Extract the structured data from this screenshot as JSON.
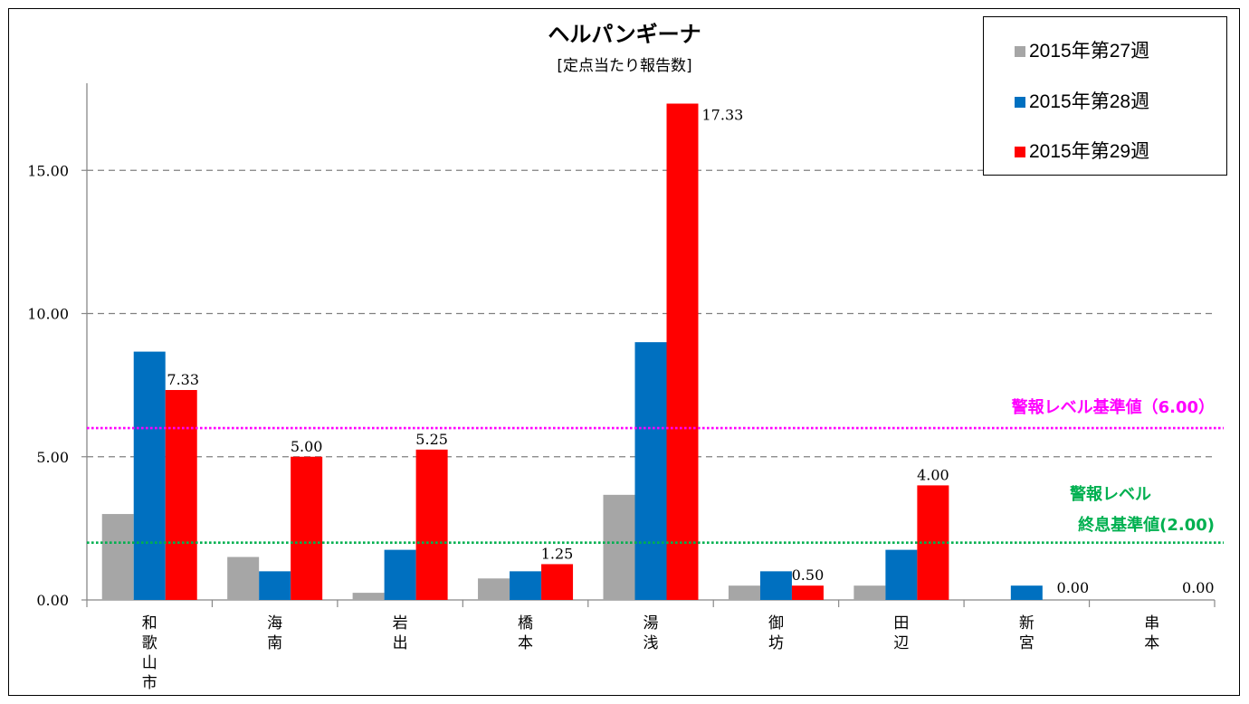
{
  "chart_data": {
    "type": "bar",
    "title": "ヘルパンギーナ",
    "subtitle": "[定点当たり報告数]",
    "categories": [
      "和歌山市",
      "海南",
      "岩出",
      "橋本",
      "湯浅",
      "御坊",
      "田辺",
      "新宮",
      "串本"
    ],
    "series": [
      {
        "name": "2015年第27週",
        "color": "#a6a6a6",
        "values": [
          3.0,
          1.5,
          0.25,
          0.75,
          3.67,
          0.5,
          0.5,
          0.0,
          0.0
        ],
        "labels": false
      },
      {
        "name": "2015年第28週",
        "color": "#0070c0",
        "values": [
          8.67,
          1.0,
          1.75,
          1.0,
          9.0,
          1.0,
          1.75,
          0.5,
          0.0
        ],
        "labels": false
      },
      {
        "name": "2015年第29週",
        "color": "#ff0000",
        "values": [
          7.33,
          5.0,
          5.25,
          1.25,
          17.33,
          0.5,
          4.0,
          0.0,
          0.0
        ],
        "labels": true
      }
    ],
    "yticks": [
      "0.00",
      "5.00",
      "10.00",
      "15.00"
    ],
    "ylim": [
      0,
      18
    ],
    "grid": "horizontal dashed",
    "legend": "top-right",
    "reference_lines": [
      {
        "value": 6.0,
        "label": "警報レベル基準値（6.00）",
        "color": "#ff00ff"
      },
      {
        "value": 2.0,
        "label_lines": [
          "警報レベル",
          "終息基準値(2.00)"
        ],
        "color": "#00b050"
      }
    ],
    "data_labels": [
      "7.33",
      "5.00",
      "5.25",
      "1.25",
      "17.33",
      "0.50",
      "4.00",
      "0.00",
      "0.00"
    ]
  }
}
